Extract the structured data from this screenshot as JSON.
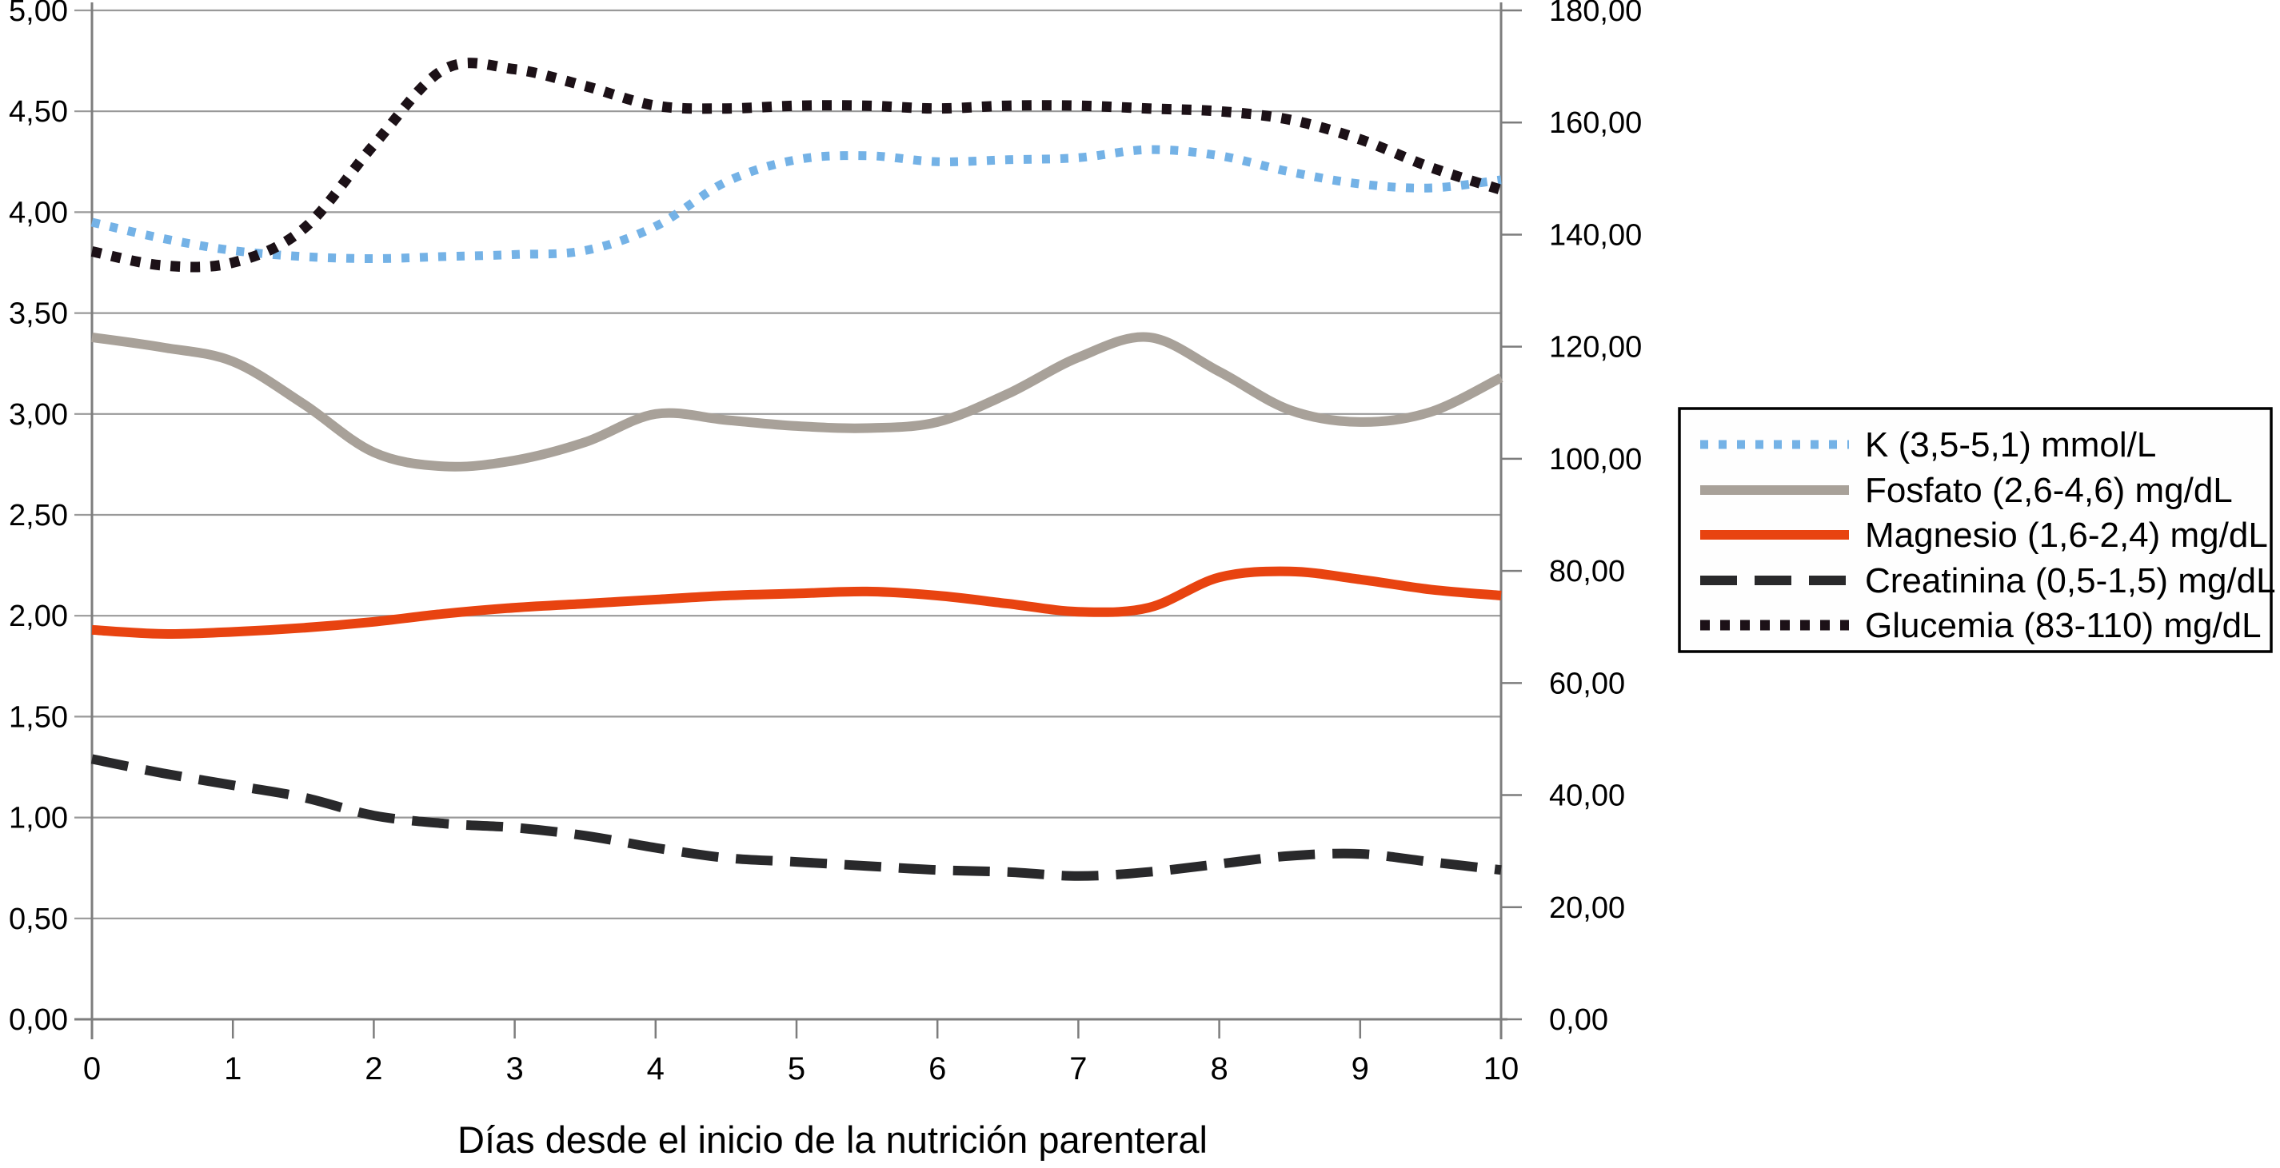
{
  "chart_data": {
    "type": "line",
    "title": "",
    "xlabel": "Días desde el inicio de la nutrición parenteral",
    "grid": "horizontal",
    "legend_position": "right",
    "x_axis": {
      "min": 0,
      "max": 10,
      "tick_values": [
        0,
        1,
        2,
        3,
        4,
        5,
        6,
        7,
        8,
        9,
        10
      ],
      "tick_labels": [
        "0",
        "1",
        "2",
        "3",
        "4",
        "5",
        "6",
        "7",
        "8",
        "9",
        "10"
      ]
    },
    "left_axis": {
      "min": 0,
      "max": 5,
      "tick_values": [
        5.0,
        4.5,
        4.0,
        3.5,
        3.0,
        2.5,
        2.0,
        1.5,
        1.0,
        0.5,
        0.0
      ],
      "tick_labels": [
        "5,00",
        "4,50",
        "4,00",
        "3,50",
        "3,00",
        "2,50",
        "2,00",
        "1,50",
        "1,00",
        "0,50",
        "0,00"
      ]
    },
    "right_axis": {
      "min": 0,
      "max": 180,
      "tick_values": [
        180,
        160,
        140,
        120,
        100,
        80,
        60,
        40,
        20,
        0
      ],
      "tick_labels": [
        "180,00",
        "160,00",
        "140,00",
        "120,00",
        "100,00",
        "80,00",
        "60,00",
        "40,00",
        "20,00",
        "0,00"
      ]
    },
    "x": [
      0,
      0.5,
      1,
      1.5,
      2,
      2.5,
      3,
      3.5,
      4,
      4.5,
      5,
      5.5,
      6,
      6.5,
      7,
      7.5,
      8,
      8.5,
      9,
      9.5,
      10
    ],
    "series": [
      {
        "name": "K (3,5-5,1) mmol/L",
        "axis": "left",
        "color": "#74b2e6",
        "style": "dotted",
        "values": [
          3.95,
          3.87,
          3.81,
          3.78,
          3.77,
          3.78,
          3.79,
          3.81,
          3.93,
          4.15,
          4.26,
          4.28,
          4.25,
          4.26,
          4.27,
          4.31,
          4.28,
          4.2,
          4.14,
          4.12,
          4.16
        ]
      },
      {
        "name": "Fosfato (2,6-4,6) mg/dL",
        "axis": "left",
        "color": "#a8a199",
        "style": "solid",
        "values": [
          3.38,
          3.33,
          3.26,
          3.05,
          2.81,
          2.74,
          2.77,
          2.86,
          3.0,
          2.97,
          2.94,
          2.93,
          2.96,
          3.1,
          3.28,
          3.38,
          3.21,
          3.02,
          2.96,
          3.01,
          3.18
        ]
      },
      {
        "name": "Magnesio (1,6-2,4) mg/dL",
        "axis": "left",
        "color": "#e84310",
        "style": "solid",
        "values": [
          1.93,
          1.91,
          1.92,
          1.94,
          1.97,
          2.01,
          2.04,
          2.06,
          2.08,
          2.1,
          2.11,
          2.12,
          2.1,
          2.06,
          2.02,
          2.04,
          2.19,
          2.22,
          2.18,
          2.13,
          2.1
        ]
      },
      {
        "name": "Creatinina (0,5-1,5) mg/dL",
        "axis": "left",
        "color": "#29292b",
        "style": "dashed",
        "values": [
          1.29,
          1.22,
          1.16,
          1.1,
          1.01,
          0.97,
          0.95,
          0.91,
          0.85,
          0.8,
          0.78,
          0.76,
          0.74,
          0.73,
          0.71,
          0.73,
          0.77,
          0.81,
          0.82,
          0.78,
          0.74
        ]
      },
      {
        "name": "Glucemia (83-110) mg/dL",
        "axis": "right",
        "color": "#1c1117",
        "style": "dotted",
        "values": [
          137,
          134.5,
          135,
          141,
          156,
          169.5,
          169.5,
          166.5,
          163,
          162.5,
          163,
          163,
          162.5,
          163,
          163,
          162.5,
          162,
          160.5,
          157,
          152,
          148
        ]
      }
    ]
  },
  "style_colors": {
    "background": "#ffffff",
    "gridline": "#999999",
    "axis": "#7d7d7d",
    "text": "#000000",
    "legend_border": "#000000",
    "legend_background": "#fefefe"
  }
}
